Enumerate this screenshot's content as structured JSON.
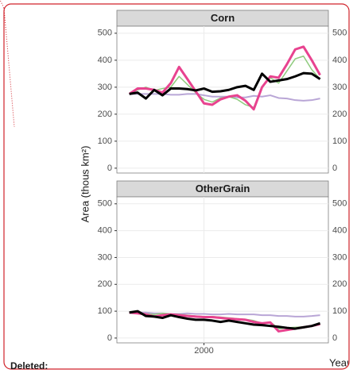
{
  "chart_data": {
    "type": "line",
    "ylabel": "Area (thous km²)",
    "xlabel": "Year",
    "x": [
      1991,
      1992,
      1993,
      1994,
      1995,
      1996,
      1997,
      1998,
      1999,
      2000,
      2001,
      2002,
      2003,
      2004,
      2005,
      2006,
      2007,
      2008,
      2009,
      2010,
      2011,
      2012,
      2013,
      2014
    ],
    "xlim": [
      1989.5,
      2015
    ],
    "xticks": [
      2000
    ],
    "grid": true,
    "panels": [
      {
        "title": "Corn",
        "ylim": [
          -18,
          526
        ],
        "yticks": [
          0,
          100,
          200,
          300,
          400,
          500
        ],
        "series": [
          {
            "color": "#b9a6d6",
            "width": 2,
            "values": [
              275,
              275,
              275,
              275,
              275,
              272,
              272,
              275,
              275,
              270,
              265,
              265,
              265,
              262,
              262,
              268,
              265,
              270,
              260,
              258,
              252,
              250,
              252,
              258
            ]
          },
          {
            "color": "#8ecb7d",
            "width": 1.5,
            "values": [
              275,
              290,
              300,
              288,
              295,
              300,
              340,
              310,
              280,
              255,
              245,
              260,
              265,
              255,
              235,
              225,
              300,
              335,
              315,
              360,
              405,
              415,
              365,
              330
            ]
          },
          {
            "color": "#e8438f",
            "width": 3,
            "values": [
              275,
              295,
              295,
              290,
              280,
              315,
              375,
              330,
              285,
              240,
              235,
              255,
              265,
              270,
              250,
              218,
              300,
              340,
              335,
              385,
              440,
              450,
              400,
              345
            ]
          },
          {
            "color": "#000000",
            "width": 3,
            "values": [
              275,
              280,
              258,
              290,
              270,
              295,
              295,
              293,
              288,
              295,
              283,
              285,
              290,
              300,
              305,
              290,
              350,
              320,
              325,
              330,
              340,
              352,
              350,
              330
            ]
          }
        ]
      },
      {
        "title": "OtherGrain",
        "ylim": [
          -18,
          526
        ],
        "yticks": [
          0,
          100,
          200,
          300,
          400,
          500
        ],
        "series": [
          {
            "color": "#b9a6d6",
            "width": 2,
            "values": [
              95,
              95,
              95,
              92,
              92,
              90,
              90,
              92,
              90,
              90,
              88,
              88,
              90,
              88,
              88,
              88,
              85,
              85,
              82,
              82,
              80,
              80,
              82,
              85
            ]
          },
          {
            "color": "#8ecb7d",
            "width": 1.5,
            "values": [
              95,
              95,
              90,
              88,
              92,
              90,
              88,
              85,
              82,
              80,
              80,
              78,
              75,
              72,
              70,
              65,
              55,
              60,
              35,
              38,
              40,
              42,
              45,
              50
            ]
          },
          {
            "color": "#e8438f",
            "width": 3,
            "values": [
              95,
              92,
              88,
              80,
              85,
              88,
              85,
              82,
              80,
              78,
              78,
              75,
              72,
              70,
              68,
              60,
              55,
              58,
              25,
              30,
              35,
              40,
              45,
              52
            ]
          },
          {
            "color": "#000000",
            "width": 3,
            "values": [
              95,
              100,
              82,
              80,
              75,
              85,
              78,
              72,
              68,
              68,
              65,
              60,
              65,
              60,
              55,
              50,
              48,
              45,
              42,
              38,
              35,
              40,
              45,
              55
            ]
          }
        ]
      }
    ]
  },
  "comment": {
    "label": "Deleted:"
  }
}
